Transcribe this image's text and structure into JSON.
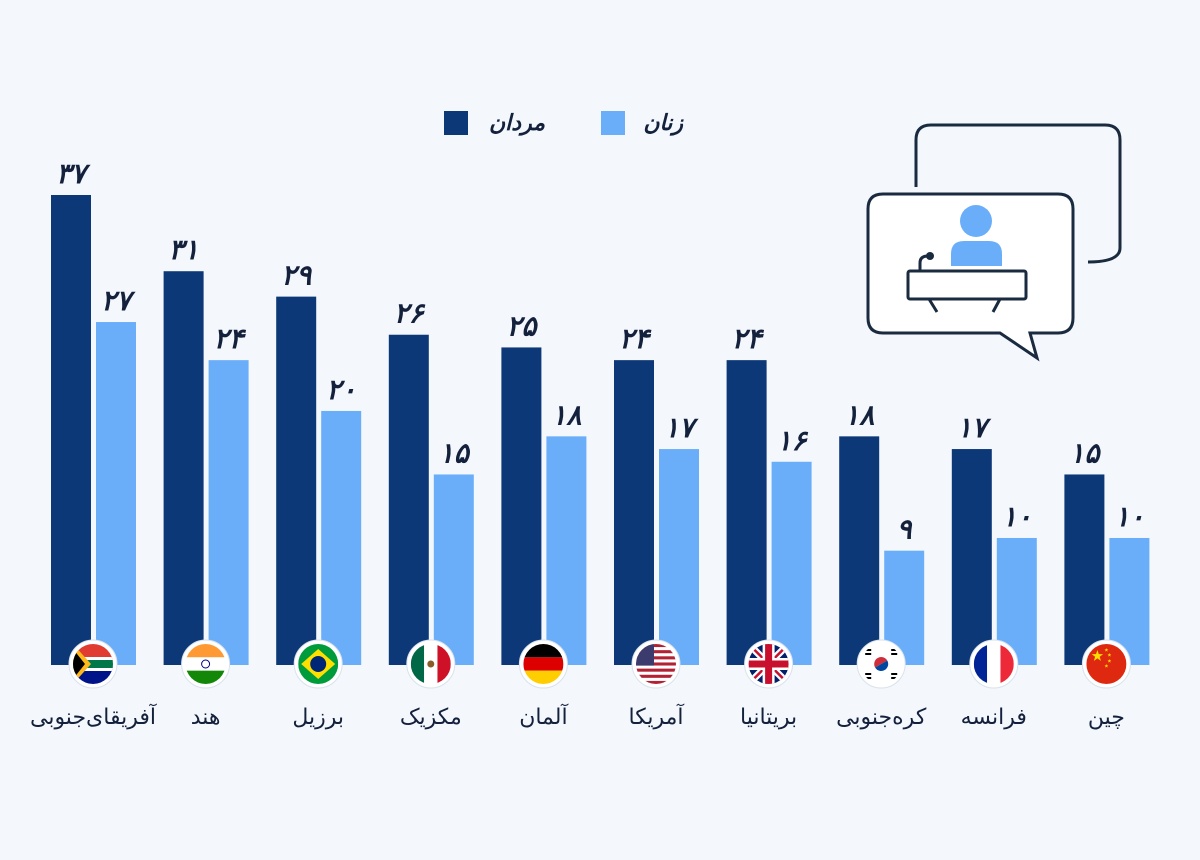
{
  "colors": {
    "background": "#f4f8fc",
    "men": "#0d3878",
    "women": "#6aaefa",
    "text": "#14213d",
    "icon_stroke": "#1a2a3f",
    "icon_fill": "#6aaefa"
  },
  "legend": {
    "men_label": "مردان",
    "women_label": "زنان"
  },
  "illustration": {
    "icon": "speaker-podium-speech-bubble-icon"
  },
  "chart_data": {
    "type": "bar",
    "categories": [
      "آفریقای‌جنوبی",
      "هند",
      "برزیل",
      "مکزیک",
      "آلمان",
      "آمریکا",
      "بریتانیا",
      "کره‌جنوبی",
      "فرانسه",
      "چین"
    ],
    "flags": [
      "south-africa-flag-icon",
      "india-flag-icon",
      "brazil-flag-icon",
      "mexico-flag-icon",
      "germany-flag-icon",
      "usa-flag-icon",
      "uk-flag-icon",
      "south-korea-flag-icon",
      "france-flag-icon",
      "china-flag-icon"
    ],
    "series": [
      {
        "name": "مردان",
        "values": [
          37,
          31,
          29,
          26,
          25,
          24,
          24,
          18,
          17,
          15
        ],
        "labels": [
          "۳۷",
          "۳۱",
          "۲۹",
          "۲۶",
          "۲۵",
          "۲۴",
          "۲۴",
          "۱۸",
          "۱۷",
          "۱۵"
        ]
      },
      {
        "name": "زنان",
        "values": [
          27,
          24,
          20,
          15,
          18,
          17,
          16,
          9,
          10,
          10
        ],
        "labels": [
          "۲۷",
          "۲۴",
          "۲۰",
          "۱۵",
          "۱۸",
          "۱۷",
          "۱۶",
          "۹",
          "۱۰",
          "۱۰"
        ]
      }
    ],
    "ylim": [
      0,
      37
    ],
    "grid": false,
    "legend_position": "top-center"
  }
}
